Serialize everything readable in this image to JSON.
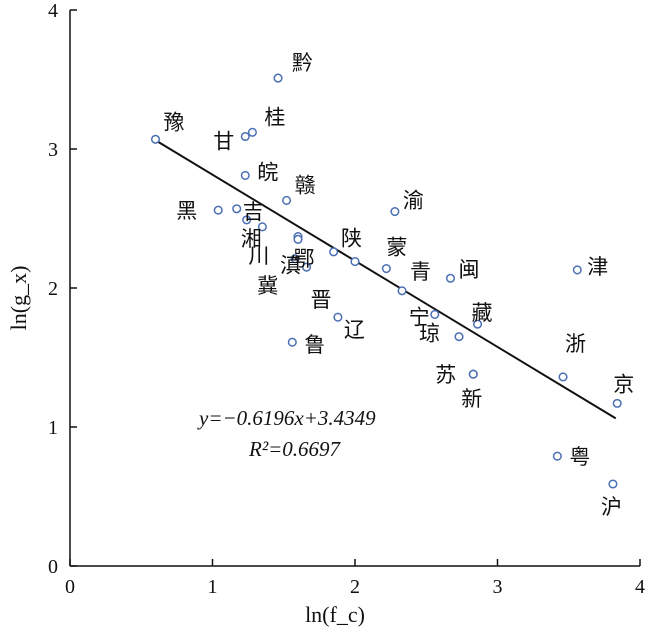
{
  "chart_data": {
    "type": "scatter",
    "title": "",
    "xlabel": "ln(f_c)",
    "ylabel": "ln(g_x)",
    "xlim": [
      0,
      4
    ],
    "ylim": [
      0,
      4
    ],
    "xticks": [
      "0",
      "1",
      "2",
      "3",
      "4"
    ],
    "yticks": [
      "0",
      "1",
      "2",
      "3",
      "4"
    ],
    "grid": false,
    "marker_color": "#4a6fb5",
    "points": [
      {
        "label": "黔",
        "x": 1.46,
        "y": 3.51
      },
      {
        "label": "豫",
        "x": 0.6,
        "y": 3.07
      },
      {
        "label": "桂",
        "x": 1.28,
        "y": 3.12
      },
      {
        "label": "甘",
        "x": 1.23,
        "y": 3.09
      },
      {
        "label": "皖",
        "x": 1.23,
        "y": 2.81
      },
      {
        "label": "赣",
        "x": 1.52,
        "y": 2.63
      },
      {
        "label": "渝",
        "x": 2.28,
        "y": 2.55
      },
      {
        "label": "黑",
        "x": 1.04,
        "y": 2.56
      },
      {
        "label": "吉",
        "x": 1.17,
        "y": 2.57
      },
      {
        "label": "湘",
        "x": 1.24,
        "y": 2.49
      },
      {
        "label": "川",
        "x": 1.35,
        "y": 2.44
      },
      {
        "label": "滇",
        "x": 1.6,
        "y": 2.37
      },
      {
        "label": "",
        "x": 1.6,
        "y": 2.35
      },
      {
        "label": "鄂",
        "x": 1.85,
        "y": 2.26
      },
      {
        "label": "陕",
        "x": 2.0,
        "y": 2.19
      },
      {
        "label": "冀",
        "x": 1.58,
        "y": 2.21
      },
      {
        "label": "晋",
        "x": 1.66,
        "y": 2.15
      },
      {
        "label": "蒙",
        "x": 2.22,
        "y": 2.14
      },
      {
        "label": "青",
        "x": 2.33,
        "y": 1.98
      },
      {
        "label": "闽",
        "x": 2.67,
        "y": 2.07
      },
      {
        "label": "津",
        "x": 3.56,
        "y": 2.13
      },
      {
        "label": "宁",
        "x": 2.56,
        "y": 1.81
      },
      {
        "label": "辽",
        "x": 1.88,
        "y": 1.79
      },
      {
        "label": "藏",
        "x": 2.86,
        "y": 1.74
      },
      {
        "label": "琼",
        "x": 2.73,
        "y": 1.65
      },
      {
        "label": "鲁",
        "x": 1.56,
        "y": 1.61
      },
      {
        "label": "苏",
        "x": 2.83,
        "y": 1.38
      },
      {
        "label": "浙",
        "x": 3.46,
        "y": 1.36
      },
      {
        "label": "新",
        "x": 2.83,
        "y": 1.38
      },
      {
        "label": "京",
        "x": 3.84,
        "y": 1.17
      },
      {
        "label": "粤",
        "x": 3.42,
        "y": 0.79
      },
      {
        "label": "沪",
        "x": 3.81,
        "y": 0.59
      }
    ],
    "fit_line": {
      "slope": -0.6196,
      "intercept": 3.4349,
      "x_range": [
        0.6,
        3.83
      ]
    },
    "annotations": {
      "equation": "y=−0.6196x+3.4349",
      "r2": "R²=0.6697"
    }
  }
}
